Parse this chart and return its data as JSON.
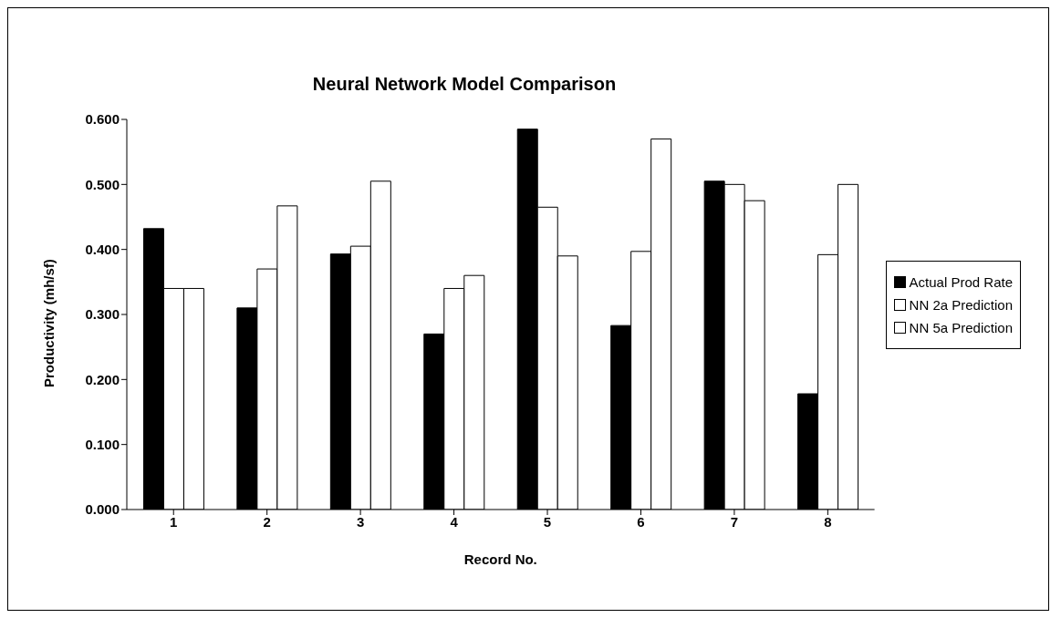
{
  "chart_data": {
    "type": "bar",
    "title": "Neural Network Model Comparison",
    "xlabel": "Record No.",
    "ylabel": "Productivity (mh/sf)",
    "categories": [
      "1",
      "2",
      "3",
      "4",
      "5",
      "6",
      "7",
      "8"
    ],
    "series": [
      {
        "name": "Actual Prod Rate",
        "color": "#000000",
        "values": [
          0.432,
          0.31,
          0.393,
          0.27,
          0.585,
          0.283,
          0.505,
          0.178
        ]
      },
      {
        "name": "NN 2a Prediction",
        "color": "#ffffff",
        "values": [
          0.34,
          0.37,
          0.405,
          0.34,
          0.465,
          0.397,
          0.5,
          0.392
        ]
      },
      {
        "name": "NN 5a Prediction",
        "color": "#ffffff",
        "values": [
          0.34,
          0.467,
          0.505,
          0.36,
          0.39,
          0.57,
          0.475,
          0.5
        ]
      }
    ],
    "ylim": [
      0,
      0.6
    ],
    "yticks": [
      {
        "value": 0,
        "label": "0.000"
      },
      {
        "value": 0.1,
        "label": "0.100"
      },
      {
        "value": 0.2,
        "label": "0.200"
      },
      {
        "value": 0.3,
        "label": "0.300"
      },
      {
        "value": 0.4,
        "label": "0.400"
      },
      {
        "value": 0.5,
        "label": "0.500"
      },
      {
        "value": 0.6,
        "label": "0.600"
      }
    ],
    "grid": false,
    "legend": "right"
  }
}
